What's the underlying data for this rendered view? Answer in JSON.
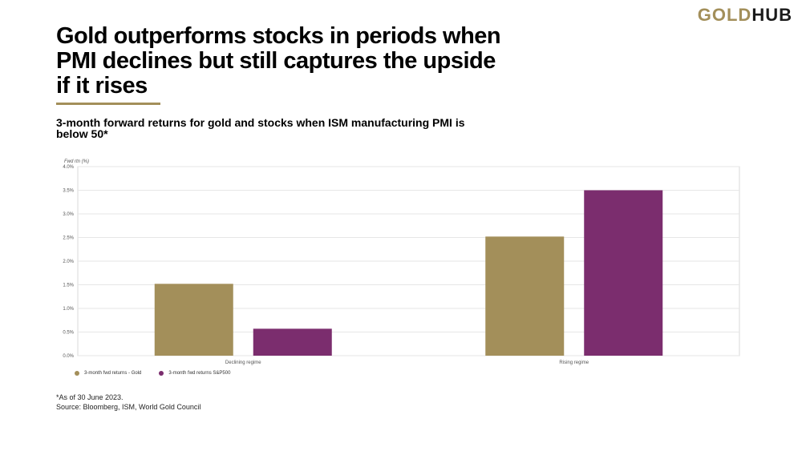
{
  "logo": {
    "part1": "GOLD",
    "part2": "HUB"
  },
  "title": "Gold outperforms stocks in periods when PMI declines but still captures the upside if it rises",
  "subtitle": "3-month forward returns for gold and stocks when ISM manufacturing PMI is below 50*",
  "footer": {
    "note": "*As of 30 June 2023.",
    "source": "Source: Bloomberg, ISM, World Gold Council"
  },
  "colors": {
    "gold": "#a38f5a",
    "purple": "#7b2d6e",
    "brand_gold": "#a38f5a"
  },
  "chart_data": {
    "type": "bar",
    "ylabel": "Fwd rtn (%)",
    "ylim": [
      0,
      4.0
    ],
    "yticks": [
      "0.0%",
      "0.5%",
      "1.0%",
      "1.5%",
      "2.0%",
      "2.5%",
      "3.0%",
      "3.5%",
      "4.0%"
    ],
    "categories": [
      "Declining regime",
      "Rising regime"
    ],
    "series": [
      {
        "name": "3-month fwd returns - Gold",
        "values": [
          1.52,
          2.52
        ],
        "color": "#a38f5a"
      },
      {
        "name": "3-month fwd returns S&P500",
        "values": [
          0.57,
          3.5
        ],
        "color": "#7b2d6e"
      }
    ],
    "grid": true,
    "legend": "bottom-left"
  }
}
